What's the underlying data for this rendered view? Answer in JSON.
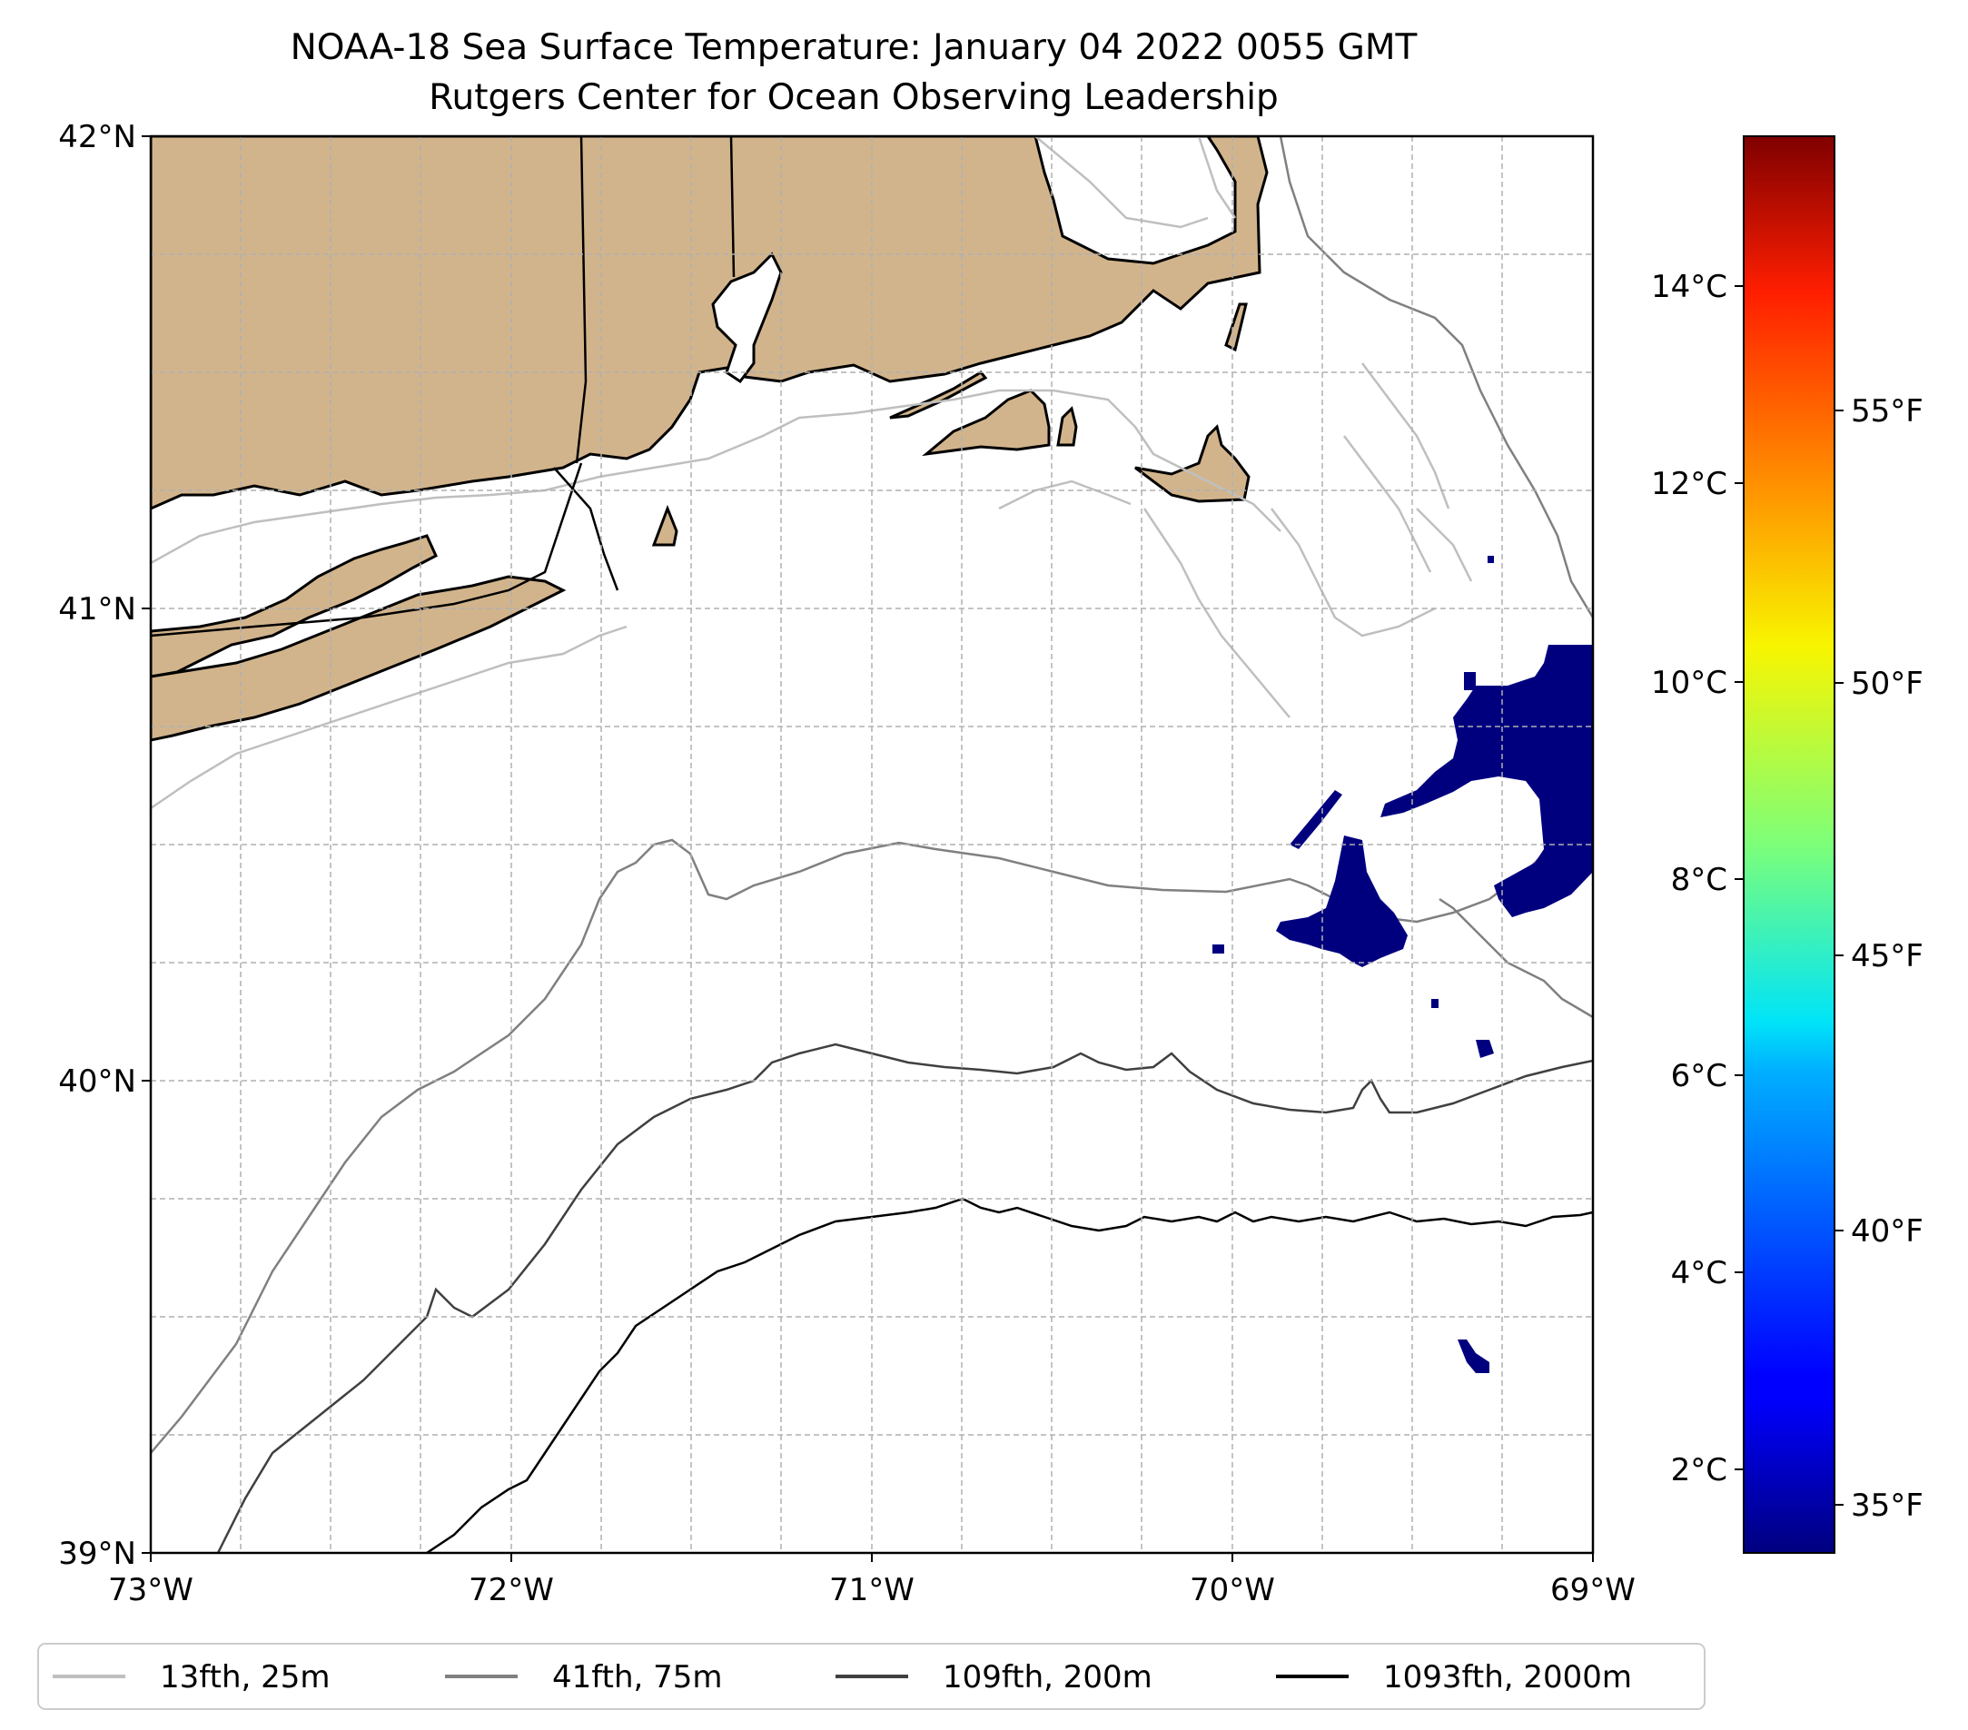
{
  "title": {
    "line1": "NOAA-18 Sea Surface Temperature: January 04 2022 0055 GMT",
    "line2": "Rutgers Center for Ocean Observing Leadership"
  },
  "map": {
    "land_color": "#d2b48c",
    "lat_ticks": [
      "42°N",
      "41°N",
      "40°N",
      "39°N"
    ],
    "lon_ticks": [
      "73°W",
      "72°W",
      "71°W",
      "70°W",
      "69°W"
    ],
    "sst_color": "#00007f"
  },
  "colorbar": {
    "celsius_ticks": [
      "14°C",
      "12°C",
      "10°C",
      "8°C",
      "6°C",
      "4°C",
      "2°C"
    ],
    "fahrenheit_ticks": [
      "55°F",
      "50°F",
      "45°F",
      "40°F",
      "35°F"
    ],
    "colormap": "jet"
  },
  "legend": {
    "items": [
      {
        "label": "13fth, 25m",
        "color": "#bfbfbf"
      },
      {
        "label": "41fth, 75m",
        "color": "#808080"
      },
      {
        "label": "109fth, 200m",
        "color": "#404040"
      },
      {
        "label": "1093fth, 2000m",
        "color": "#000000"
      }
    ]
  }
}
